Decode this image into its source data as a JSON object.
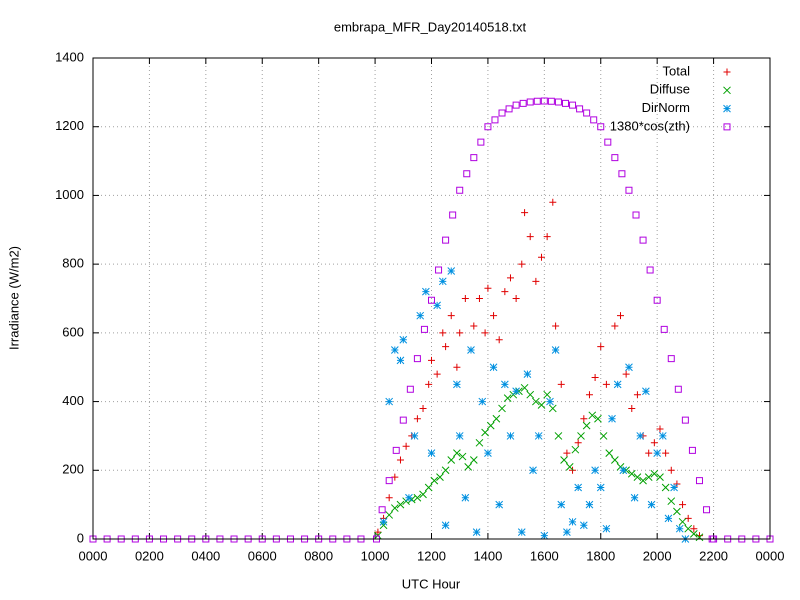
{
  "chart_data": {
    "type": "scatter",
    "title": "embrapa_MFR_Day20140518.txt",
    "xlabel": "UTC Hour",
    "ylabel": "Irradiance (W/m2)",
    "xlim": [
      0,
      24
    ],
    "ylim": [
      0,
      1400
    ],
    "xticks": [
      {
        "value": 0,
        "label": "0000"
      },
      {
        "value": 2,
        "label": "0200"
      },
      {
        "value": 4,
        "label": "0400"
      },
      {
        "value": 6,
        "label": "0600"
      },
      {
        "value": 8,
        "label": "0800"
      },
      {
        "value": 10,
        "label": "1000"
      },
      {
        "value": 12,
        "label": "1200"
      },
      {
        "value": 14,
        "label": "1400"
      },
      {
        "value": 16,
        "label": "1600"
      },
      {
        "value": 18,
        "label": "1800"
      },
      {
        "value": 20,
        "label": "2000"
      },
      {
        "value": 22,
        "label": "2200"
      },
      {
        "value": 24,
        "label": "0000"
      }
    ],
    "yticks": [
      0,
      200,
      400,
      600,
      800,
      1000,
      1200,
      1400
    ],
    "grid": true,
    "legend": "top-right",
    "series": [
      {
        "name": "Total",
        "color": "#e00000",
        "marker": "plus",
        "x": [
          10.1,
          10.3,
          10.5,
          10.7,
          10.9,
          11.1,
          11.3,
          11.5,
          11.7,
          11.9,
          12.0,
          12.2,
          12.4,
          12.5,
          12.7,
          12.9,
          13.0,
          13.2,
          13.4,
          13.5,
          13.7,
          13.9,
          14.0,
          14.2,
          14.4,
          14.6,
          14.8,
          15.0,
          15.2,
          15.3,
          15.5,
          15.7,
          15.9,
          16.1,
          16.3,
          16.4,
          16.6,
          16.8,
          17.0,
          17.2,
          17.4,
          17.6,
          17.8,
          18.0,
          18.2,
          18.5,
          18.7,
          18.9,
          19.1,
          19.3,
          19.5,
          19.7,
          19.9,
          20.1,
          20.3,
          20.5,
          20.7,
          20.9,
          21.1,
          21.3,
          21.5
        ],
        "values": [
          20,
          60,
          120,
          180,
          230,
          270,
          300,
          350,
          380,
          450,
          520,
          480,
          600,
          560,
          650,
          500,
          600,
          700,
          550,
          620,
          700,
          600,
          730,
          650,
          580,
          720,
          760,
          700,
          800,
          950,
          880,
          750,
          820,
          880,
          980,
          620,
          450,
          250,
          200,
          280,
          350,
          420,
          470,
          560,
          450,
          620,
          650,
          480,
          380,
          420,
          300,
          250,
          280,
          320,
          250,
          200,
          160,
          100,
          60,
          30,
          10
        ]
      },
      {
        "name": "Diffuse",
        "color": "#00a000",
        "marker": "cross",
        "x": [
          10.1,
          10.3,
          10.5,
          10.7,
          10.9,
          11.1,
          11.3,
          11.5,
          11.7,
          11.9,
          12.1,
          12.3,
          12.5,
          12.7,
          12.9,
          13.1,
          13.3,
          13.5,
          13.7,
          13.9,
          14.1,
          14.3,
          14.5,
          14.7,
          14.9,
          15.1,
          15.3,
          15.5,
          15.7,
          15.9,
          16.1,
          16.3,
          16.5,
          16.7,
          16.9,
          17.1,
          17.3,
          17.5,
          17.7,
          17.9,
          18.1,
          18.3,
          18.5,
          18.7,
          18.9,
          19.1,
          19.3,
          19.5,
          19.7,
          19.9,
          20.1,
          20.3,
          20.5,
          20.7,
          20.9,
          21.1,
          21.3,
          21.5
        ],
        "values": [
          10,
          40,
          70,
          90,
          100,
          110,
          115,
          120,
          130,
          150,
          170,
          180,
          200,
          230,
          250,
          240,
          210,
          230,
          280,
          310,
          330,
          350,
          380,
          410,
          420,
          430,
          440,
          420,
          400,
          390,
          420,
          380,
          300,
          230,
          210,
          260,
          300,
          330,
          360,
          350,
          300,
          250,
          230,
          210,
          200,
          190,
          180,
          170,
          180,
          190,
          180,
          150,
          110,
          80,
          50,
          30,
          15,
          5
        ]
      },
      {
        "name": "DirNorm",
        "color": "#0090e0",
        "marker": "star",
        "x": [
          10.3,
          10.5,
          10.7,
          10.9,
          11.0,
          11.2,
          11.4,
          11.6,
          11.8,
          12.0,
          12.2,
          12.4,
          12.5,
          12.7,
          12.9,
          13.0,
          13.2,
          13.4,
          13.6,
          13.8,
          14.0,
          14.2,
          14.4,
          14.6,
          14.8,
          15.0,
          15.2,
          15.4,
          15.6,
          15.8,
          16.0,
          16.2,
          16.4,
          16.6,
          16.8,
          17.0,
          17.2,
          17.4,
          17.6,
          17.8,
          18.0,
          18.2,
          18.4,
          18.6,
          18.8,
          19.0,
          19.2,
          19.4,
          19.6,
          19.8,
          20.0,
          20.2,
          20.4,
          20.6,
          20.8,
          21.0
        ],
        "values": [
          50,
          400,
          550,
          520,
          580,
          120,
          300,
          650,
          720,
          250,
          680,
          750,
          40,
          780,
          450,
          300,
          120,
          550,
          20,
          400,
          250,
          500,
          100,
          450,
          300,
          430,
          20,
          480,
          200,
          300,
          10,
          400,
          550,
          100,
          20,
          50,
          150,
          40,
          100,
          200,
          150,
          30,
          350,
          450,
          200,
          500,
          120,
          300,
          430,
          100,
          250,
          300,
          60,
          150,
          30,
          0
        ]
      },
      {
        "name": "1380*cos(zth)",
        "color": "#b000e0",
        "marker": "square",
        "x": [
          0,
          0.5,
          1,
          1.5,
          2,
          2.5,
          3,
          3.5,
          4,
          4.5,
          5,
          5.5,
          6,
          6.5,
          7,
          7.5,
          8,
          8.5,
          9,
          9.5,
          10.05,
          10.25,
          10.5,
          10.75,
          11,
          11.25,
          11.5,
          11.75,
          12,
          12.25,
          12.5,
          12.75,
          13,
          13.25,
          13.5,
          13.75,
          14,
          14.25,
          14.5,
          14.75,
          15,
          15.25,
          15.5,
          15.75,
          16,
          16.25,
          16.5,
          16.75,
          17,
          17.25,
          17.5,
          17.75,
          18,
          18.25,
          18.5,
          18.75,
          19,
          19.25,
          19.5,
          19.75,
          20,
          20.25,
          20.5,
          20.75,
          21,
          21.25,
          21.5,
          21.75,
          21.95,
          22,
          22.5,
          23,
          23.5,
          24
        ],
        "values": [
          0,
          0,
          0,
          0,
          0,
          0,
          0,
          0,
          0,
          0,
          0,
          0,
          0,
          0,
          0,
          0,
          0,
          0,
          0,
          0,
          0,
          85,
          170,
          258,
          346,
          436,
          525,
          610,
          695,
          783,
          870,
          943,
          1015,
          1063,
          1110,
          1155,
          1200,
          1220,
          1240,
          1252,
          1263,
          1268,
          1272,
          1274,
          1275,
          1274,
          1272,
          1268,
          1263,
          1252,
          1240,
          1220,
          1200,
          1155,
          1110,
          1063,
          1015,
          943,
          870,
          783,
          695,
          610,
          525,
          436,
          346,
          258,
          170,
          85,
          0,
          0,
          0,
          0,
          0,
          0
        ]
      }
    ]
  }
}
